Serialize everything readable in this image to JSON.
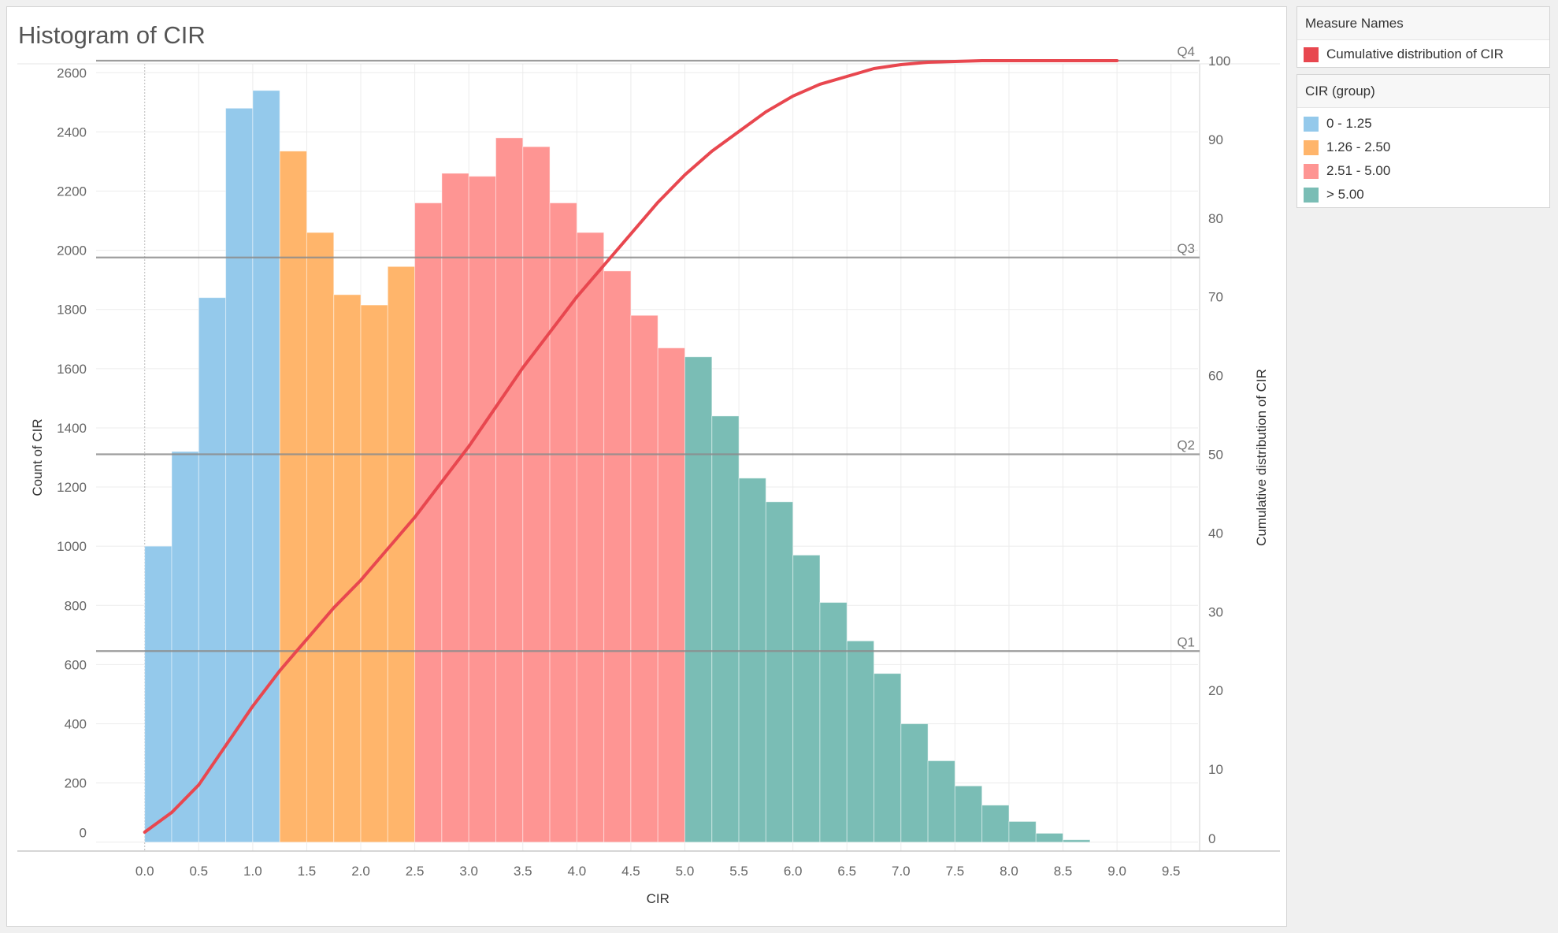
{
  "title": "Histogram of CIR",
  "legends": {
    "measure": {
      "title": "Measure Names",
      "items": [
        {
          "label": "Cumulative distribution of CIR",
          "color": "#e8474f"
        }
      ]
    },
    "group": {
      "title": "CIR (group)",
      "items": [
        {
          "label": "0 - 1.25",
          "color": "#94c9eb"
        },
        {
          "label": "1.26 - 2.50",
          "color": "#ffb56b"
        },
        {
          "label": "2.51 - 5.00",
          "color": "#fe9593"
        },
        {
          "label": "> 5.00",
          "color": "#7abdb5"
        }
      ]
    }
  },
  "chart_data": {
    "type": "bar",
    "title": "Histogram of CIR",
    "xlabel": "CIR",
    "ylabel": "Count of CIR",
    "y2label": "Cumulative distribution of CIR",
    "xlim": [
      -0.45,
      9.75
    ],
    "ylim": [
      -30,
      2630
    ],
    "y2lim": [
      -0.4,
      99.6
    ],
    "x_ticks": [
      "0.0",
      "0.5",
      "1.0",
      "1.5",
      "2.0",
      "2.5",
      "3.0",
      "3.5",
      "4.0",
      "4.5",
      "5.0",
      "5.5",
      "6.0",
      "6.5",
      "7.0",
      "7.5",
      "8.0",
      "8.5",
      "9.0",
      "9.5"
    ],
    "x_tick_values": [
      0,
      0.5,
      1,
      1.5,
      2,
      2.5,
      3,
      3.5,
      4,
      4.5,
      5,
      5.5,
      6,
      6.5,
      7,
      7.5,
      8,
      8.5,
      9,
      9.5
    ],
    "y_ticks": [
      0,
      200,
      400,
      600,
      800,
      1000,
      1200,
      1400,
      1600,
      1800,
      2000,
      2200,
      2400,
      2600
    ],
    "y2_ticks": [
      0,
      10,
      20,
      30,
      40,
      50,
      60,
      70,
      80,
      90,
      100
    ],
    "bin_width": 0.25,
    "bins": [
      {
        "x": 0.0,
        "count": 1000,
        "group": 0
      },
      {
        "x": 0.25,
        "count": 1320,
        "group": 0
      },
      {
        "x": 0.5,
        "count": 1840,
        "group": 0
      },
      {
        "x": 0.75,
        "count": 2480,
        "group": 0
      },
      {
        "x": 1.0,
        "count": 2540,
        "group": 0
      },
      {
        "x": 1.25,
        "count": 2335,
        "group": 1
      },
      {
        "x": 1.5,
        "count": 2060,
        "group": 1
      },
      {
        "x": 1.75,
        "count": 1850,
        "group": 1
      },
      {
        "x": 2.0,
        "count": 1815,
        "group": 1
      },
      {
        "x": 2.25,
        "count": 1945,
        "group": 1
      },
      {
        "x": 2.5,
        "count": 2160,
        "group": 2
      },
      {
        "x": 2.75,
        "count": 2260,
        "group": 2
      },
      {
        "x": 3.0,
        "count": 2250,
        "group": 2
      },
      {
        "x": 3.25,
        "count": 2380,
        "group": 2
      },
      {
        "x": 3.5,
        "count": 2350,
        "group": 2
      },
      {
        "x": 3.75,
        "count": 2160,
        "group": 2
      },
      {
        "x": 4.0,
        "count": 2060,
        "group": 2
      },
      {
        "x": 4.25,
        "count": 1930,
        "group": 2
      },
      {
        "x": 4.5,
        "count": 1780,
        "group": 2
      },
      {
        "x": 4.75,
        "count": 1670,
        "group": 2
      },
      {
        "x": 5.0,
        "count": 1640,
        "group": 3
      },
      {
        "x": 5.25,
        "count": 1440,
        "group": 3
      },
      {
        "x": 5.5,
        "count": 1230,
        "group": 3
      },
      {
        "x": 5.75,
        "count": 1150,
        "group": 3
      },
      {
        "x": 6.0,
        "count": 970,
        "group": 3
      },
      {
        "x": 6.25,
        "count": 810,
        "group": 3
      },
      {
        "x": 6.5,
        "count": 680,
        "group": 3
      },
      {
        "x": 6.75,
        "count": 570,
        "group": 3
      },
      {
        "x": 7.0,
        "count": 400,
        "group": 3
      },
      {
        "x": 7.25,
        "count": 275,
        "group": 3
      },
      {
        "x": 7.5,
        "count": 190,
        "group": 3
      },
      {
        "x": 7.75,
        "count": 125,
        "group": 3
      },
      {
        "x": 8.0,
        "count": 70,
        "group": 3
      },
      {
        "x": 8.25,
        "count": 30,
        "group": 3
      },
      {
        "x": 8.5,
        "count": 8,
        "group": 3
      }
    ],
    "cumulative": {
      "name": "Cumulative distribution of CIR",
      "color": "#e8474f",
      "x": [
        0,
        0.25,
        0.5,
        0.75,
        1,
        1.25,
        1.5,
        1.75,
        2,
        2.25,
        2.5,
        2.75,
        3,
        3.25,
        3.5,
        3.75,
        4,
        4.25,
        4.5,
        4.75,
        5,
        5.25,
        5.5,
        5.75,
        6,
        6.25,
        6.5,
        6.75,
        7,
        7.25,
        7.5,
        7.75,
        8,
        8.25,
        8.5,
        8.75,
        9
      ],
      "y": [
        2,
        4.5,
        8,
        13,
        18,
        22.5,
        26.5,
        30.5,
        34,
        38,
        42,
        46.5,
        51,
        56,
        61,
        65.5,
        70,
        74,
        78,
        82,
        85.5,
        88.5,
        91,
        93.5,
        95.5,
        97,
        98,
        99,
        99.5,
        99.8,
        99.9,
        100,
        100,
        100,
        100,
        100,
        100
      ]
    },
    "reference_lines": [
      {
        "label": "Q1",
        "value": 25
      },
      {
        "label": "Q2",
        "value": 50
      },
      {
        "label": "Q3",
        "value": 75
      },
      {
        "label": "Q4",
        "value": 100
      }
    ]
  }
}
